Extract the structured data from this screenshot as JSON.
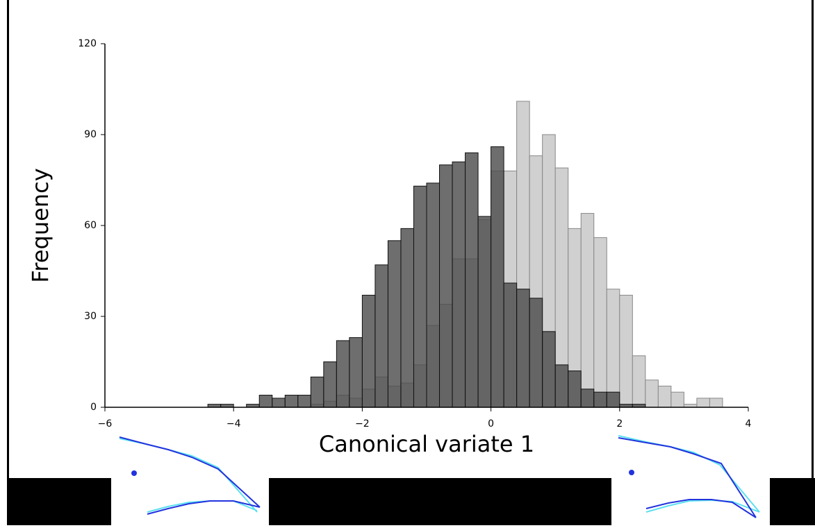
{
  "chart_data": {
    "type": "histogram",
    "xlabel": "Canonical variate 1",
    "ylabel": "Frequency",
    "bins": [
      -4.4,
      -4.2,
      -4.0,
      -3.8,
      -3.6,
      -3.4,
      -3.2,
      -3.0,
      -2.8,
      -2.6,
      -2.4,
      -2.2,
      -2.0,
      -1.8,
      -1.6,
      -1.4,
      -1.2,
      -1.0,
      -0.8,
      -0.6,
      -0.4,
      -0.2,
      0,
      0.2,
      0.4,
      0.6,
      0.8,
      1.0,
      1.2,
      1.4,
      1.6,
      1.8,
      2.0,
      2.2,
      2.4,
      2.6,
      2.8,
      3.0,
      3.2,
      3.4,
      3.6
    ],
    "series": [
      {
        "color": "#d0d0d0",
        "values": [
          0,
          0,
          0,
          0,
          0,
          0,
          0,
          0,
          1,
          2,
          4,
          3,
          6,
          10,
          7,
          8,
          14,
          27,
          34,
          49,
          49,
          62,
          78,
          78,
          101,
          83,
          90,
          79,
          59,
          64,
          56,
          39,
          37,
          17,
          9,
          7,
          5,
          1,
          3,
          3
        ]
      },
      {
        "color": "#4a4a4a",
        "values": [
          1,
          1,
          0,
          1,
          4,
          3,
          4,
          4,
          10,
          15,
          22,
          23,
          37,
          47,
          55,
          59,
          73,
          74,
          80,
          81,
          84,
          63,
          86,
          41,
          39,
          36,
          25,
          14,
          12,
          6,
          5,
          5,
          1,
          1,
          0,
          0,
          0,
          0,
          0,
          0
        ]
      }
    ],
    "xlim": [
      -6,
      4
    ],
    "ylim": [
      0,
      120
    ],
    "xticks": [
      {
        "value": -6,
        "label": "−6"
      },
      {
        "value": -4,
        "label": "−4"
      },
      {
        "value": -2,
        "label": "−2"
      },
      0,
      2,
      4
    ],
    "yticks": [
      0,
      30,
      60,
      90,
      120
    ]
  }
}
